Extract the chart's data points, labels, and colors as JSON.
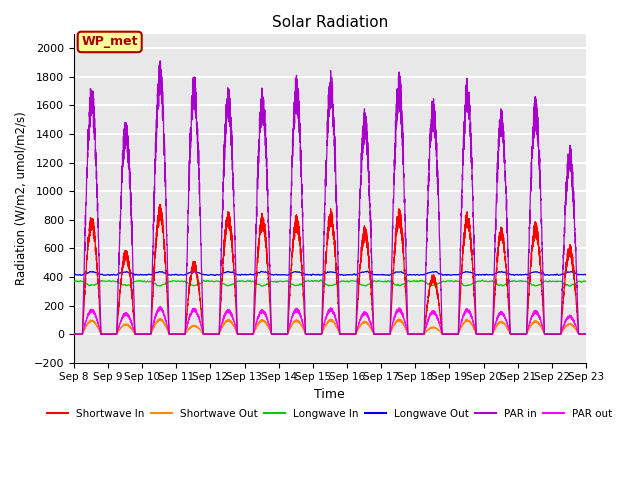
{
  "title": "Solar Radiation",
  "xlabel": "Time",
  "ylabel": "Radiation (W/m2, umol/m2/s)",
  "ylim": [
    -200,
    2100
  ],
  "yticks": [
    -200,
    0,
    200,
    400,
    600,
    800,
    1000,
    1200,
    1400,
    1600,
    1800,
    2000
  ],
  "start_day": 8,
  "end_day": 23,
  "n_days": 15,
  "colors": {
    "shortwave_in": "#ff0000",
    "shortwave_out": "#ff8800",
    "longwave_in": "#00cc00",
    "longwave_out": "#0000dd",
    "par_in": "#aa00cc",
    "par_out": "#ff00ff"
  },
  "legend_labels": [
    "Shortwave In",
    "Shortwave Out",
    "Longwave In",
    "Longwave Out",
    "PAR in",
    "PAR out"
  ],
  "annotation_text": "WP_met",
  "annotation_color": "#aa0000",
  "annotation_bg": "#ffff99",
  "background_color": "#e8e8e8",
  "grid_color": "#ffffff",
  "peak_par_values": [
    1770,
    1520,
    1920,
    1840,
    1750,
    1730,
    1820,
    1850,
    1580,
    1840,
    1660,
    1820,
    1600,
    1670,
    1330
  ],
  "peak_sw_values": [
    840,
    600,
    910,
    520,
    870,
    850,
    840,
    880,
    760,
    880,
    420,
    870,
    760,
    790,
    630
  ],
  "longwave_in_base": 370,
  "longwave_out_base": 415,
  "shortwave_out_scale": 0.12,
  "par_out_scale": 0.1
}
